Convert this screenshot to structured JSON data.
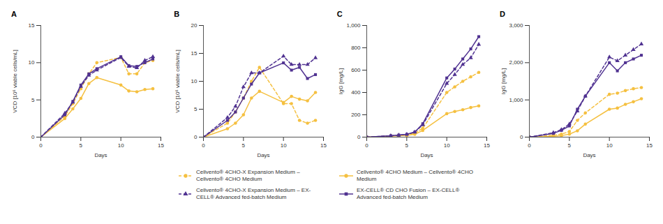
{
  "chart_data": [
    {
      "type": "line",
      "title": "A",
      "x_label": "Days",
      "y_label": "VCD [10⁶ viable cells/mL]",
      "xlim": [
        0,
        15
      ],
      "xticks": [
        0,
        5,
        10,
        15
      ],
      "ylim": [
        0,
        15
      ],
      "yticks": [
        0,
        5,
        10,
        15
      ],
      "x": [
        0,
        3,
        4,
        5,
        6,
        7,
        10,
        11,
        12,
        13,
        14
      ],
      "series": [
        {
          "name": "Cellvento® 4CHO-X Expansion Medium – Cellvento® 4CHO Medium",
          "color": "#f5c040",
          "marker": "circle",
          "line_style": "dashed",
          "values": [
            0,
            2.8,
            4.5,
            6.5,
            8.5,
            10.0,
            10.7,
            8.5,
            8.5,
            10.0,
            10.3
          ]
        },
        {
          "name": "Cellvento® 4CHO Medium – Cellvento® 4CHO Medium",
          "color": "#f5c040",
          "marker": "circle",
          "line_style": "solid",
          "values": [
            0,
            2.5,
            3.8,
            5.2,
            7.2,
            8.0,
            7.0,
            6.2,
            6.1,
            6.4,
            6.5
          ]
        },
        {
          "name": "Cellvento® 4CHO-X Expansion Medium – EX-CELL® Advanced fed-batch Medium",
          "color": "#503291",
          "marker": "triangle",
          "line_style": "dashed",
          "values": [
            0,
            3.2,
            4.7,
            6.8,
            8.3,
            9.0,
            10.7,
            9.5,
            9.3,
            10.3,
            10.8
          ]
        },
        {
          "name": "EX-CELL® CD CHO Fusion – EX-CELL® Advanced fed-batch Medium",
          "color": "#503291",
          "marker": "square",
          "line_style": "solid",
          "values": [
            0,
            3.0,
            4.8,
            7.0,
            8.5,
            9.2,
            10.8,
            9.6,
            9.5,
            10.0,
            10.5
          ]
        }
      ]
    },
    {
      "type": "line",
      "title": "B",
      "x_label": "Days",
      "y_label": "VCD [10⁶ viable cells/mL]",
      "xlim": [
        0,
        15
      ],
      "xticks": [
        0,
        5,
        10,
        15
      ],
      "ylim": [
        0,
        20
      ],
      "yticks": [
        0,
        5,
        10,
        15,
        20
      ],
      "x": [
        0,
        3,
        4,
        5,
        6,
        7,
        10,
        11,
        12,
        13,
        14
      ],
      "series": [
        {
          "name": "Cellvento® 4CHO-X Expansion Medium – Cellvento® 4CHO Medium",
          "color": "#f5c040",
          "marker": "circle",
          "line_style": "dashed",
          "values": [
            0,
            2.5,
            4.5,
            7.0,
            10.0,
            12.5,
            6.0,
            6.0,
            3.0,
            2.5,
            3.0
          ]
        },
        {
          "name": "Cellvento® 4CHO Medium – Cellvento® 4CHO Medium",
          "color": "#f5c040",
          "marker": "circle",
          "line_style": "solid",
          "values": [
            0,
            1.5,
            2.5,
            4.0,
            7.0,
            8.2,
            6.2,
            7.3,
            6.8,
            6.5,
            8.0
          ]
        },
        {
          "name": "Cellvento® 4CHO-X Expansion Medium – EX-CELL® Advanced fed-batch Medium",
          "color": "#503291",
          "marker": "triangle",
          "line_style": "dashed",
          "values": [
            0,
            3.5,
            5.5,
            9.0,
            11.5,
            11.5,
            14.5,
            13.0,
            13.0,
            13.0,
            14.2
          ]
        },
        {
          "name": "EX-CELL® CD CHO Fusion – EX-CELL® Advanced fed-batch Medium",
          "color": "#503291",
          "marker": "square",
          "line_style": "solid",
          "values": [
            0,
            3.0,
            4.5,
            7.0,
            9.5,
            11.5,
            13.3,
            12.0,
            12.5,
            10.5,
            11.2
          ]
        }
      ]
    },
    {
      "type": "line",
      "title": "C",
      "x_label": "Days",
      "y_label": "IgG [mg/L]",
      "xlim": [
        0,
        15
      ],
      "xticks": [
        0,
        5,
        10,
        15
      ],
      "ylim": [
        0,
        1000
      ],
      "yticks": [
        0,
        200,
        400,
        600,
        800,
        {
          "value": 1000,
          "label": "1,000"
        }
      ],
      "x": [
        0,
        3,
        4,
        5,
        6,
        7,
        10,
        11,
        12,
        13,
        14
      ],
      "series": [
        {
          "name": "Cellvento® 4CHO-X Expansion Medium – Cellvento® 4CHO Medium",
          "color": "#f5c040",
          "marker": "circle",
          "line_style": "dashed",
          "values": [
            0,
            10,
            15,
            20,
            35,
            80,
            400,
            450,
            500,
            540,
            580
          ]
        },
        {
          "name": "Cellvento® 4CHO Medium – Cellvento® 4CHO Medium",
          "color": "#f5c040",
          "marker": "circle",
          "line_style": "solid",
          "values": [
            0,
            10,
            12,
            15,
            25,
            60,
            210,
            230,
            245,
            265,
            280
          ]
        },
        {
          "name": "Cellvento® 4CHO-X Expansion Medium – EX-CELL® Advanced fed-batch Medium",
          "color": "#503291",
          "marker": "triangle",
          "line_style": "dashed",
          "values": [
            0,
            12,
            18,
            25,
            45,
            110,
            480,
            560,
            650,
            710,
            830
          ]
        },
        {
          "name": "EX-CELL® CD CHO Fusion – EX-CELL® Advanced fed-batch Medium",
          "color": "#503291",
          "marker": "square",
          "line_style": "solid",
          "values": [
            0,
            12,
            18,
            25,
            45,
            120,
            530,
            610,
            700,
            790,
            900
          ]
        }
      ]
    },
    {
      "type": "line",
      "title": "D",
      "x_label": "Days",
      "y_label": "IgG [mg/L]",
      "xlim": [
        0,
        15
      ],
      "xticks": [
        0,
        5,
        10,
        15
      ],
      "ylim": [
        0,
        3000
      ],
      "yticks": [
        0,
        {
          "value": 1000,
          "label": "1,000"
        },
        {
          "value": 2000,
          "label": "2,000"
        },
        {
          "value": 3000,
          "label": "3,000"
        }
      ],
      "x": [
        0,
        3,
        4,
        5,
        6,
        7,
        10,
        11,
        12,
        13,
        14
      ],
      "series": [
        {
          "name": "Cellvento® 4CHO-X Expansion Medium – Cellvento® 4CHO Medium",
          "color": "#f5c040",
          "marker": "circle",
          "line_style": "dashed",
          "values": [
            0,
            50,
            80,
            150,
            450,
            650,
            1150,
            1180,
            1250,
            1300,
            1330
          ]
        },
        {
          "name": "Cellvento® 4CHO Medium – Cellvento® 4CHO Medium",
          "color": "#f5c040",
          "marker": "circle",
          "line_style": "solid",
          "values": [
            0,
            20,
            40,
            80,
            170,
            350,
            750,
            780,
            880,
            950,
            1030
          ]
        },
        {
          "name": "Cellvento® 4CHO-X Expansion Medium – EX-CELL® Advanced fed-batch Medium",
          "color": "#503291",
          "marker": "triangle",
          "line_style": "dashed",
          "values": [
            0,
            120,
            200,
            350,
            700,
            1100,
            2150,
            2050,
            2200,
            2350,
            2500
          ]
        },
        {
          "name": "EX-CELL® CD CHO Fusion – EX-CELL® Advanced fed-batch Medium",
          "color": "#503291",
          "marker": "square",
          "line_style": "solid",
          "values": [
            0,
            100,
            180,
            300,
            750,
            1100,
            2000,
            1780,
            2000,
            2100,
            2200
          ]
        }
      ]
    }
  ]
}
